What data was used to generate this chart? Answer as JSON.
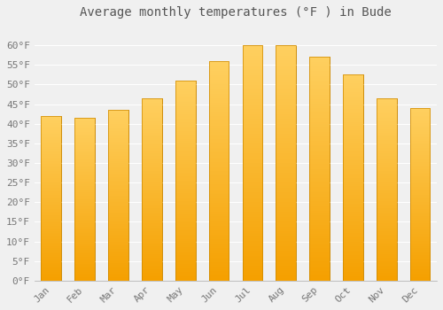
{
  "title": "Average monthly temperatures (°F ) in Bude",
  "months": [
    "Jan",
    "Feb",
    "Mar",
    "Apr",
    "May",
    "Jun",
    "Jul",
    "Aug",
    "Sep",
    "Oct",
    "Nov",
    "Dec"
  ],
  "values": [
    42,
    41.5,
    43.5,
    46.5,
    51,
    56,
    60,
    60,
    57,
    52.5,
    46.5,
    44
  ],
  "bar_color_top": "#FFD060",
  "bar_color_bottom": "#F5A000",
  "bar_edge_color": "#CC8800",
  "background_color": "#F0F0F0",
  "grid_color": "#FFFFFF",
  "text_color": "#777777",
  "ylim": [
    0,
    65
  ],
  "yticks": [
    0,
    5,
    10,
    15,
    20,
    25,
    30,
    35,
    40,
    45,
    50,
    55,
    60
  ],
  "title_fontsize": 10,
  "tick_fontsize": 8,
  "font_family": "monospace"
}
